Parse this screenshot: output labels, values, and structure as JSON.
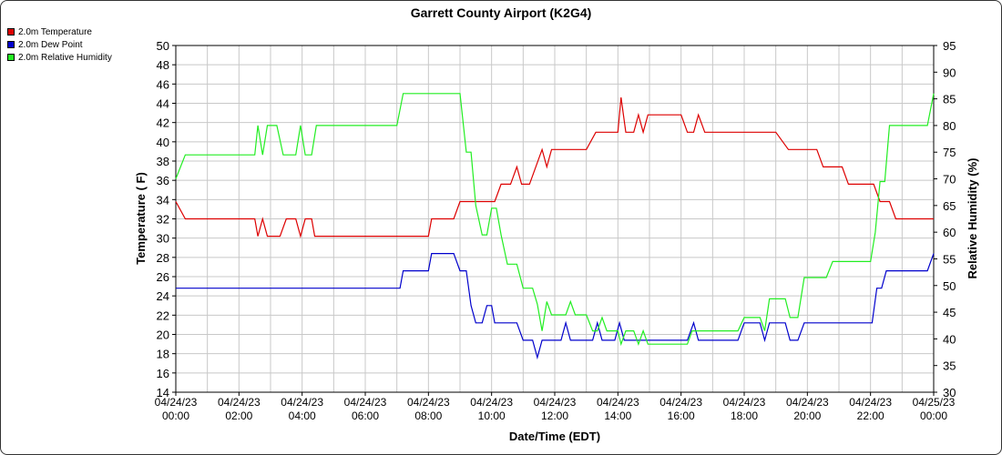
{
  "chart_data": {
    "type": "line",
    "title": "Garrett County Airport (K2G4)",
    "xlabel": "Date/Time (EDT)",
    "ylabel_left": "Temperature ( F)",
    "ylabel_right": "Relative Humidity (%)",
    "y_left_lim": [
      14,
      50
    ],
    "y_left_ticks": [
      14,
      16,
      18,
      20,
      22,
      24,
      26,
      28,
      30,
      32,
      34,
      36,
      38,
      40,
      42,
      44,
      46,
      48,
      50
    ],
    "y_right_lim": [
      30,
      95
    ],
    "y_right_ticks": [
      30,
      35,
      40,
      45,
      50,
      55,
      60,
      65,
      70,
      75,
      80,
      85,
      90,
      95
    ],
    "x_lim": [
      0,
      24
    ],
    "x_ticks": [
      {
        "x": 0,
        "date": "04/24/23",
        "time": "00:00"
      },
      {
        "x": 2,
        "date": "04/24/23",
        "time": "02:00"
      },
      {
        "x": 4,
        "date": "04/24/23",
        "time": "04:00"
      },
      {
        "x": 6,
        "date": "04/24/23",
        "time": "06:00"
      },
      {
        "x": 8,
        "date": "04/24/23",
        "time": "08:00"
      },
      {
        "x": 10,
        "date": "04/24/23",
        "time": "10:00"
      },
      {
        "x": 12,
        "date": "04/24/23",
        "time": "12:00"
      },
      {
        "x": 14,
        "date": "04/24/23",
        "time": "14:00"
      },
      {
        "x": 16,
        "date": "04/24/23",
        "time": "16:00"
      },
      {
        "x": 18,
        "date": "04/24/23",
        "time": "18:00"
      },
      {
        "x": 20,
        "date": "04/24/23",
        "time": "20:00"
      },
      {
        "x": 22,
        "date": "04/24/23",
        "time": "22:00"
      },
      {
        "x": 24,
        "date": "04/25/23",
        "time": "00:00"
      }
    ],
    "grid": true,
    "legend_position": "top-left",
    "series": [
      {
        "name": "2.0m Temperature",
        "color": "#dd0000",
        "axis": "left",
        "points": [
          [
            0,
            33.8
          ],
          [
            0.3,
            32
          ],
          [
            2.5,
            32
          ],
          [
            2.6,
            30.2
          ],
          [
            2.75,
            32
          ],
          [
            2.9,
            30.2
          ],
          [
            3.3,
            30.2
          ],
          [
            3.5,
            32
          ],
          [
            3.8,
            32
          ],
          [
            3.95,
            30.2
          ],
          [
            4.1,
            32
          ],
          [
            4.3,
            32
          ],
          [
            4.4,
            30.2
          ],
          [
            7,
            30.2
          ],
          [
            8,
            30.2
          ],
          [
            8.1,
            32
          ],
          [
            8.8,
            32
          ],
          [
            9,
            33.8
          ],
          [
            10.1,
            33.8
          ],
          [
            10.3,
            35.6
          ],
          [
            10.6,
            35.6
          ],
          [
            10.8,
            37.4
          ],
          [
            10.95,
            35.6
          ],
          [
            11.2,
            35.6
          ],
          [
            11.6,
            39.2
          ],
          [
            11.75,
            37.4
          ],
          [
            11.9,
            39.2
          ],
          [
            13,
            39.2
          ],
          [
            13.3,
            41
          ],
          [
            14,
            41
          ],
          [
            14.1,
            44.6
          ],
          [
            14.25,
            41
          ],
          [
            14.5,
            41
          ],
          [
            14.65,
            42.8
          ],
          [
            14.8,
            41
          ],
          [
            14.95,
            42.8
          ],
          [
            16,
            42.8
          ],
          [
            16.2,
            41
          ],
          [
            16.4,
            41
          ],
          [
            16.55,
            42.8
          ],
          [
            16.75,
            41
          ],
          [
            19,
            41
          ],
          [
            19.4,
            39.2
          ],
          [
            20.3,
            39.2
          ],
          [
            20.5,
            37.4
          ],
          [
            21.1,
            37.4
          ],
          [
            21.3,
            35.6
          ],
          [
            22.1,
            35.6
          ],
          [
            22.3,
            33.8
          ],
          [
            22.6,
            33.8
          ],
          [
            22.8,
            32
          ],
          [
            24,
            32
          ]
        ]
      },
      {
        "name": "2.0m Dew Point",
        "color": "#0000cc",
        "axis": "left",
        "points": [
          [
            0,
            24.8
          ],
          [
            7.1,
            24.8
          ],
          [
            7.2,
            26.6
          ],
          [
            8,
            26.6
          ],
          [
            8.1,
            28.4
          ],
          [
            8.8,
            28.4
          ],
          [
            9,
            26.6
          ],
          [
            9.2,
            26.6
          ],
          [
            9.35,
            23
          ],
          [
            9.5,
            21.2
          ],
          [
            9.7,
            21.2
          ],
          [
            9.85,
            23
          ],
          [
            10,
            23
          ],
          [
            10.1,
            21.2
          ],
          [
            10.8,
            21.2
          ],
          [
            11,
            19.4
          ],
          [
            11.3,
            19.4
          ],
          [
            11.45,
            17.6
          ],
          [
            11.6,
            19.4
          ],
          [
            12.2,
            19.4
          ],
          [
            12.35,
            21.2
          ],
          [
            12.5,
            19.4
          ],
          [
            13.2,
            19.4
          ],
          [
            13.35,
            21.2
          ],
          [
            13.5,
            19.4
          ],
          [
            13.9,
            19.4
          ],
          [
            14.05,
            21.2
          ],
          [
            14.2,
            19.4
          ],
          [
            16.2,
            19.4
          ],
          [
            16.4,
            21.2
          ],
          [
            16.55,
            19.4
          ],
          [
            17.8,
            19.4
          ],
          [
            18,
            21.2
          ],
          [
            18.5,
            21.2
          ],
          [
            18.65,
            19.4
          ],
          [
            18.8,
            21.2
          ],
          [
            19.3,
            21.2
          ],
          [
            19.45,
            19.4
          ],
          [
            19.7,
            19.4
          ],
          [
            19.9,
            21.2
          ],
          [
            22.05,
            21.2
          ],
          [
            22.2,
            24.8
          ],
          [
            22.35,
            24.8
          ],
          [
            22.5,
            26.6
          ],
          [
            23.8,
            26.6
          ],
          [
            24,
            28.4
          ]
        ]
      },
      {
        "name": "2.0m Relative Humidity",
        "color": "#22ee22",
        "axis": "right",
        "points": [
          [
            0,
            70
          ],
          [
            0.3,
            74.5
          ],
          [
            2.5,
            74.5
          ],
          [
            2.6,
            80
          ],
          [
            2.75,
            74.5
          ],
          [
            2.9,
            80
          ],
          [
            3.2,
            80
          ],
          [
            3.4,
            74.5
          ],
          [
            3.8,
            74.5
          ],
          [
            3.95,
            80
          ],
          [
            4.1,
            74.5
          ],
          [
            4.3,
            74.5
          ],
          [
            4.45,
            80
          ],
          [
            7,
            80
          ],
          [
            7.2,
            86
          ],
          [
            9,
            86
          ],
          [
            9.2,
            75
          ],
          [
            9.35,
            75
          ],
          [
            9.5,
            65
          ],
          [
            9.7,
            59.5
          ],
          [
            9.85,
            59.5
          ],
          [
            10,
            64.5
          ],
          [
            10.15,
            64.5
          ],
          [
            10.3,
            59.5
          ],
          [
            10.5,
            54
          ],
          [
            10.8,
            54
          ],
          [
            11,
            49.5
          ],
          [
            11.3,
            49.5
          ],
          [
            11.45,
            46.5
          ],
          [
            11.6,
            41.5
          ],
          [
            11.75,
            47
          ],
          [
            11.9,
            44.5
          ],
          [
            12.35,
            44.5
          ],
          [
            12.5,
            47
          ],
          [
            12.65,
            44.5
          ],
          [
            13,
            44.5
          ],
          [
            13.2,
            41.5
          ],
          [
            13.35,
            41.5
          ],
          [
            13.5,
            44
          ],
          [
            13.65,
            41.5
          ],
          [
            14,
            41.5
          ],
          [
            14.1,
            39
          ],
          [
            14.25,
            41.5
          ],
          [
            14.5,
            41.5
          ],
          [
            14.65,
            39
          ],
          [
            14.8,
            41.5
          ],
          [
            14.95,
            39
          ],
          [
            16.2,
            39
          ],
          [
            16.35,
            41.5
          ],
          [
            17.8,
            41.5
          ],
          [
            18,
            44
          ],
          [
            18.5,
            44
          ],
          [
            18.65,
            41.5
          ],
          [
            18.8,
            47.5
          ],
          [
            19.3,
            47.5
          ],
          [
            19.45,
            44
          ],
          [
            19.7,
            44
          ],
          [
            19.9,
            51.5
          ],
          [
            20.6,
            51.5
          ],
          [
            20.8,
            54.5
          ],
          [
            22,
            54.5
          ],
          [
            22.15,
            60
          ],
          [
            22.3,
            69.5
          ],
          [
            22.45,
            69.5
          ],
          [
            22.6,
            80
          ],
          [
            23.8,
            80
          ],
          [
            24,
            86
          ]
        ]
      }
    ]
  }
}
